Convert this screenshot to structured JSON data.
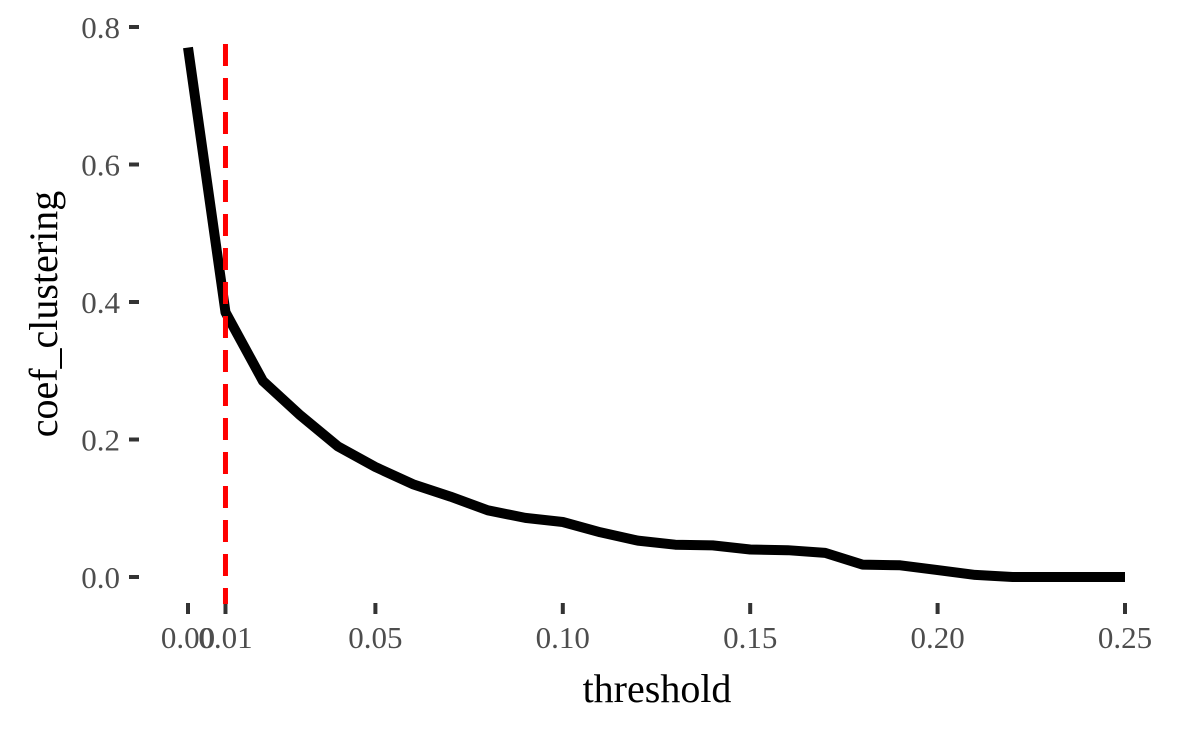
{
  "chart_data": {
    "type": "line",
    "xlabel": "threshold",
    "ylabel": "coef_clustering",
    "xlim": [
      0,
      0.25
    ],
    "ylim": [
      0,
      0.8
    ],
    "x_ticks": [
      {
        "value": 0.0,
        "label": "0.00"
      },
      {
        "value": 0.01,
        "label": "0.01"
      },
      {
        "value": 0.05,
        "label": "0.05"
      },
      {
        "value": 0.1,
        "label": "0.10"
      },
      {
        "value": 0.15,
        "label": "0.15"
      },
      {
        "value": 0.2,
        "label": "0.20"
      },
      {
        "value": 0.25,
        "label": "0.25"
      }
    ],
    "y_ticks": [
      {
        "value": 0.0,
        "label": "0.0"
      },
      {
        "value": 0.2,
        "label": "0.2"
      },
      {
        "value": 0.4,
        "label": "0.4"
      },
      {
        "value": 0.6,
        "label": "0.6"
      },
      {
        "value": 0.8,
        "label": "0.8"
      }
    ],
    "grid": false,
    "series": [
      {
        "color": "#000000",
        "x": [
          0.0,
          0.01,
          0.02,
          0.03,
          0.04,
          0.05,
          0.06,
          0.07,
          0.08,
          0.09,
          0.1,
          0.11,
          0.12,
          0.13,
          0.14,
          0.15,
          0.16,
          0.17,
          0.18,
          0.19,
          0.2,
          0.21,
          0.22,
          0.23,
          0.24,
          0.25
        ],
        "y": [
          0.77,
          0.385,
          0.285,
          0.235,
          0.19,
          0.16,
          0.135,
          0.117,
          0.097,
          0.086,
          0.08,
          0.065,
          0.053,
          0.047,
          0.046,
          0.04,
          0.039,
          0.035,
          0.018,
          0.017,
          0.01,
          0.003,
          0.0,
          0.0,
          0.0,
          0.0
        ]
      }
    ],
    "vline": {
      "x": 0.01,
      "color": "#ff0000",
      "style": "dashed"
    }
  }
}
